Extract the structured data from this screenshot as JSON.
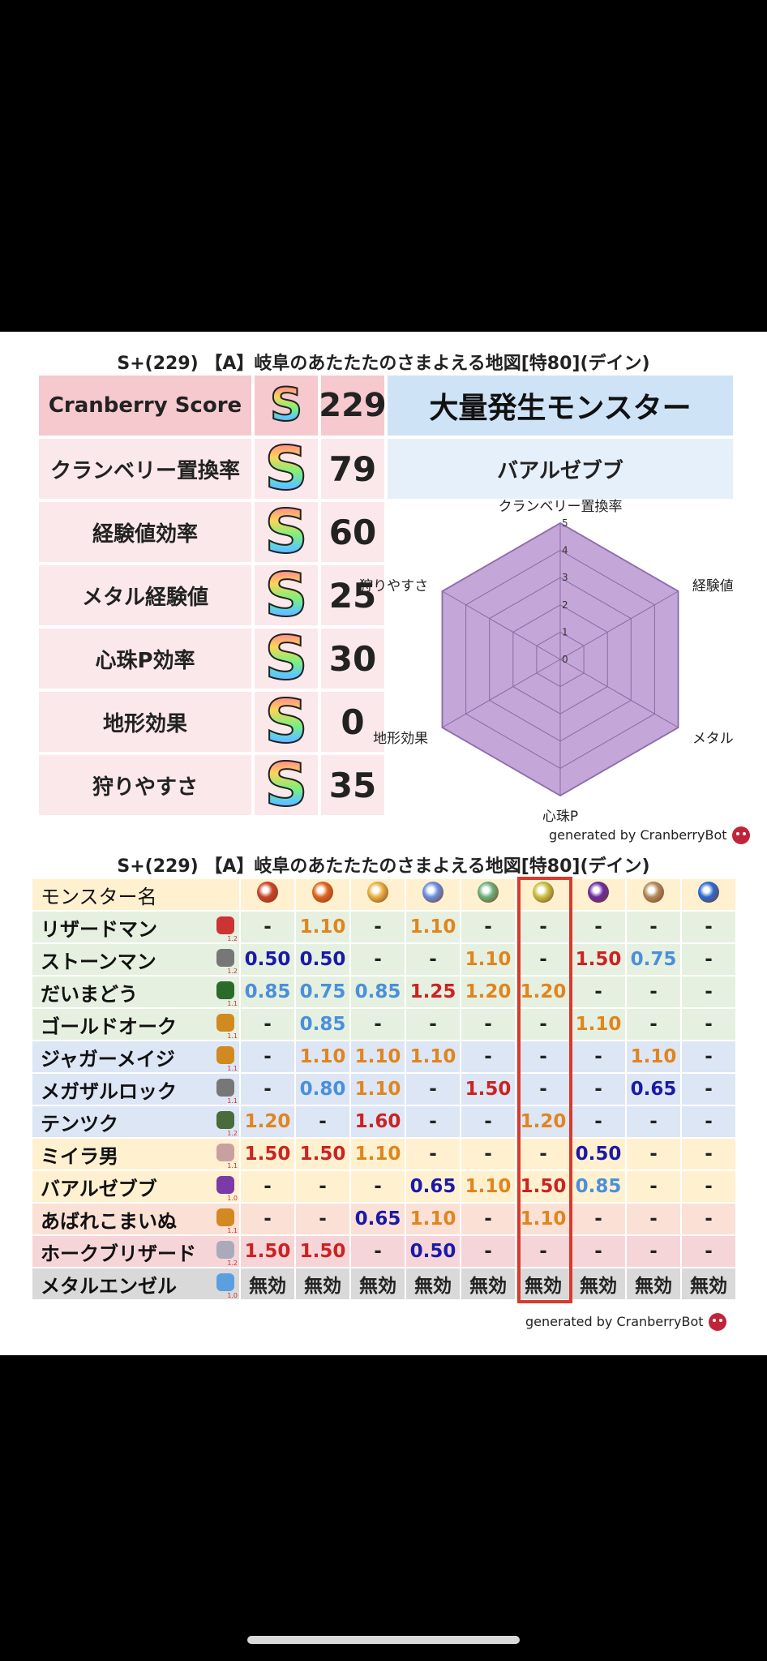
{
  "colors": {
    "pink": "#fbe8ea",
    "pink_head": "#f5c9cd",
    "blue_head": "#cfe3f7",
    "radar_fill": "#c4a6d8"
  },
  "top": {
    "title": "S+(229) 【A】岐阜のあたたたのさまよえる地図[特80](デイン)",
    "score_label": "Cranberry Score",
    "score_grade": "S",
    "score_value": "229",
    "stats": [
      {
        "label": "クランベリー置換率",
        "grade": "S",
        "value": "79"
      },
      {
        "label": "経験値効率",
        "grade": "S",
        "value": "60"
      },
      {
        "label": "メタル経験値",
        "grade": "S",
        "value": "25"
      },
      {
        "label": "心珠P効率",
        "grade": "S",
        "value": "30"
      },
      {
        "label": "地形効果",
        "grade": "S",
        "value": "0"
      },
      {
        "label": "狩りやすさ",
        "grade": "S",
        "value": "35"
      }
    ],
    "mass_title": "大量発生モンスター",
    "mass_monster": "バアルゼブブ",
    "generated": "generated by CranberryBot"
  },
  "radar": {
    "axes": [
      "クランベリー置換率",
      "経験値",
      "メタル",
      "心珠P",
      "地形効果",
      "狩りやすさ"
    ],
    "ticks": [
      "0",
      "1",
      "2",
      "3",
      "4",
      "5"
    ],
    "max": 5,
    "values": [
      5,
      5,
      5,
      5,
      5,
      5
    ]
  },
  "table": {
    "title": "S+(229) 【A】岐阜のあたたたのさまよえる地図[特80](デイン)",
    "name_header": "モンスター名",
    "element_icons": [
      "fire-icon",
      "flame-icon",
      "explosion-icon",
      "ice-icon",
      "wind-icon",
      "light-icon",
      "dark-icon",
      "earth-icon",
      "water-icon"
    ],
    "rows": [
      {
        "name": "リザードマン",
        "num": "1.2",
        "color": "#e6f0e0",
        "icon": "#c33",
        "cells": [
          [
            "-",
            "dash"
          ],
          [
            "1.10",
            "orange"
          ],
          [
            "-",
            "dash"
          ],
          [
            "1.10",
            "orange"
          ],
          [
            "-",
            "dash"
          ],
          [
            "-",
            "dash"
          ],
          [
            "-",
            "dash"
          ],
          [
            "-",
            "dash"
          ],
          [
            "-",
            "dash"
          ]
        ]
      },
      {
        "name": "ストーンマン",
        "num": "1.2",
        "color": "#e6f0e0",
        "icon": "#777",
        "cells": [
          [
            "0.50",
            "navy"
          ],
          [
            "0.50",
            "navy"
          ],
          [
            "-",
            "dash"
          ],
          [
            "-",
            "dash"
          ],
          [
            "1.10",
            "orange"
          ],
          [
            "-",
            "dash"
          ],
          [
            "1.50",
            "red"
          ],
          [
            "0.75",
            "blue"
          ],
          [
            "-",
            "dash"
          ]
        ]
      },
      {
        "name": "だいまどう",
        "num": "1.1",
        "color": "#e6f0e0",
        "icon": "#2a6b2a",
        "cells": [
          [
            "0.85",
            "blue"
          ],
          [
            "0.75",
            "blue"
          ],
          [
            "0.85",
            "blue"
          ],
          [
            "1.25",
            "red"
          ],
          [
            "1.20",
            "orange"
          ],
          [
            "1.20",
            "orange"
          ],
          [
            "-",
            "dash"
          ],
          [
            "-",
            "dash"
          ],
          [
            "-",
            "dash"
          ]
        ]
      },
      {
        "name": "ゴールドオーク",
        "num": "1.1",
        "color": "#e6f0e0",
        "icon": "#d08a20",
        "cells": [
          [
            "-",
            "dash"
          ],
          [
            "0.85",
            "blue"
          ],
          [
            "-",
            "dash"
          ],
          [
            "-",
            "dash"
          ],
          [
            "-",
            "dash"
          ],
          [
            "-",
            "dash"
          ],
          [
            "1.10",
            "orange"
          ],
          [
            "-",
            "dash"
          ],
          [
            "-",
            "dash"
          ]
        ]
      },
      {
        "name": "ジャガーメイジ",
        "num": "1.1",
        "color": "#dde6f5",
        "icon": "#d08a20",
        "cells": [
          [
            "-",
            "dash"
          ],
          [
            "1.10",
            "orange"
          ],
          [
            "1.10",
            "orange"
          ],
          [
            "1.10",
            "orange"
          ],
          [
            "-",
            "dash"
          ],
          [
            "-",
            "dash"
          ],
          [
            "-",
            "dash"
          ],
          [
            "1.10",
            "orange"
          ],
          [
            "-",
            "dash"
          ]
        ]
      },
      {
        "name": "メガザルロック",
        "num": "1.1",
        "color": "#dde6f5",
        "icon": "#777",
        "cells": [
          [
            "-",
            "dash"
          ],
          [
            "0.80",
            "blue"
          ],
          [
            "1.10",
            "orange"
          ],
          [
            "-",
            "dash"
          ],
          [
            "1.50",
            "red"
          ],
          [
            "-",
            "dash"
          ],
          [
            "-",
            "dash"
          ],
          [
            "0.65",
            "navy"
          ],
          [
            "-",
            "dash"
          ]
        ]
      },
      {
        "name": "テンツク",
        "num": "1.2",
        "color": "#dde6f5",
        "icon": "#4a6b3a",
        "cells": [
          [
            "1.20",
            "orange"
          ],
          [
            "-",
            "dash"
          ],
          [
            "1.60",
            "red"
          ],
          [
            "-",
            "dash"
          ],
          [
            "-",
            "dash"
          ],
          [
            "1.20",
            "orange"
          ],
          [
            "-",
            "dash"
          ],
          [
            "-",
            "dash"
          ],
          [
            "-",
            "dash"
          ]
        ]
      },
      {
        "name": "ミイラ男",
        "num": "1.1",
        "color": "#fff1d0",
        "icon": "#c9a0a0",
        "cells": [
          [
            "1.50",
            "red"
          ],
          [
            "1.50",
            "red"
          ],
          [
            "1.10",
            "orange"
          ],
          [
            "-",
            "dash"
          ],
          [
            "-",
            "dash"
          ],
          [
            "-",
            "dash"
          ],
          [
            "0.50",
            "navy"
          ],
          [
            "-",
            "dash"
          ],
          [
            "-",
            "dash"
          ]
        ]
      },
      {
        "name": "バアルゼブブ",
        "num": "1.0",
        "color": "#fff1d0",
        "icon": "#7a3aa8",
        "cells": [
          [
            "-",
            "dash"
          ],
          [
            "-",
            "dash"
          ],
          [
            "-",
            "dash"
          ],
          [
            "0.65",
            "navy"
          ],
          [
            "1.10",
            "orange"
          ],
          [
            "1.50",
            "red"
          ],
          [
            "0.85",
            "blue"
          ],
          [
            "-",
            "dash"
          ],
          [
            "-",
            "dash"
          ]
        ]
      },
      {
        "name": "あばれこまいぬ",
        "num": "1.1",
        "color": "#fbe0d5",
        "icon": "#d08a20",
        "cells": [
          [
            "-",
            "dash"
          ],
          [
            "-",
            "dash"
          ],
          [
            "0.65",
            "navy"
          ],
          [
            "1.10",
            "orange"
          ],
          [
            "-",
            "dash"
          ],
          [
            "1.10",
            "orange"
          ],
          [
            "-",
            "dash"
          ],
          [
            "-",
            "dash"
          ],
          [
            "-",
            "dash"
          ]
        ]
      },
      {
        "name": "ホークブリザード",
        "num": "1.2",
        "color": "#f5d5d8",
        "icon": "#aab",
        "cells": [
          [
            "1.50",
            "red"
          ],
          [
            "1.50",
            "red"
          ],
          [
            "-",
            "dash"
          ],
          [
            "0.50",
            "navy"
          ],
          [
            "-",
            "dash"
          ],
          [
            "-",
            "dash"
          ],
          [
            "-",
            "dash"
          ],
          [
            "-",
            "dash"
          ],
          [
            "-",
            "dash"
          ]
        ]
      },
      {
        "name": "メタルエンゼル",
        "num": "1.0",
        "color": "#d9d9d9",
        "icon": "#5aa0e0",
        "cells": [
          [
            "無効",
            "dash"
          ],
          [
            "無効",
            "dash"
          ],
          [
            "無効",
            "dash"
          ],
          [
            "無効",
            "dash"
          ],
          [
            "無効",
            "dash"
          ],
          [
            "無効",
            "dash"
          ],
          [
            "無効",
            "dash"
          ],
          [
            "無効",
            "dash"
          ],
          [
            "無効",
            "dash"
          ]
        ]
      }
    ],
    "generated": "generated by CranberryBot"
  }
}
